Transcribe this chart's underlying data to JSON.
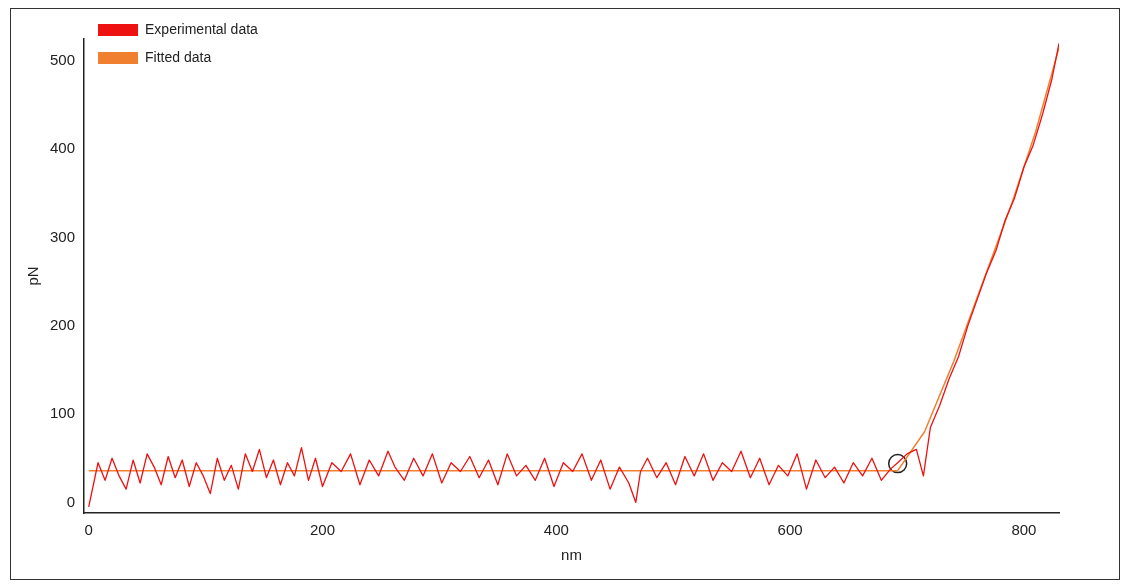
{
  "chart_data": {
    "type": "line",
    "xlabel": "nm",
    "ylabel": "pN",
    "xlim": [
      -4,
      830
    ],
    "ylim": [
      -12,
      525
    ],
    "xticks": [
      0,
      200,
      400,
      600,
      800
    ],
    "yticks": [
      0,
      100,
      200,
      300,
      400,
      500
    ],
    "grid": false,
    "legend": "top left",
    "marker": "none",
    "line_style": "solid",
    "series": [
      {
        "name": "Experimental data",
        "color": "#ee1111",
        "x": [
          0,
          4,
          8,
          14,
          20,
          26,
          32,
          38,
          44,
          50,
          56,
          62,
          68,
          74,
          80,
          86,
          92,
          98,
          104,
          110,
          116,
          122,
          128,
          134,
          140,
          146,
          152,
          158,
          164,
          170,
          176,
          182,
          188,
          194,
          200,
          208,
          216,
          224,
          232,
          240,
          248,
          256,
          262,
          270,
          278,
          286,
          294,
          302,
          310,
          318,
          326,
          334,
          342,
          350,
          358,
          366,
          374,
          382,
          390,
          398,
          406,
          414,
          422,
          430,
          438,
          446,
          454,
          462,
          468,
          472,
          478,
          486,
          494,
          502,
          510,
          518,
          526,
          534,
          542,
          550,
          558,
          566,
          574,
          582,
          590,
          598,
          606,
          614,
          622,
          630,
          638,
          646,
          654,
          662,
          670,
          678,
          686,
          692,
          700,
          708,
          714,
          720,
          728,
          736,
          744,
          752,
          760,
          768,
          776,
          784,
          792,
          800,
          808,
          816,
          824,
          830
        ],
        "values": [
          -5,
          20,
          45,
          25,
          50,
          30,
          15,
          48,
          22,
          55,
          40,
          20,
          52,
          28,
          48,
          18,
          45,
          30,
          10,
          50,
          25,
          42,
          15,
          55,
          35,
          60,
          28,
          48,
          20,
          45,
          30,
          62,
          25,
          50,
          18,
          45,
          35,
          55,
          20,
          48,
          30,
          58,
          40,
          25,
          50,
          30,
          55,
          22,
          45,
          35,
          52,
          28,
          48,
          20,
          55,
          30,
          42,
          25,
          50,
          18,
          45,
          35,
          55,
          25,
          48,
          15,
          40,
          22,
          0,
          35,
          50,
          28,
          45,
          20,
          52,
          30,
          55,
          25,
          45,
          35,
          58,
          28,
          50,
          20,
          42,
          30,
          55,
          15,
          48,
          28,
          40,
          22,
          45,
          30,
          50,
          25,
          38,
          45,
          55,
          60,
          30,
          85,
          110,
          140,
          165,
          200,
          230,
          260,
          285,
          320,
          345,
          380,
          405,
          440,
          480,
          520
        ]
      },
      {
        "name": "Fitted data",
        "color": "#f08030",
        "x": [
          0,
          692,
          715,
          740,
          765,
          790,
          810,
          830
        ],
        "values": [
          36,
          36,
          80,
          160,
          250,
          340,
          420,
          515
        ]
      },
      {
        "type": "scatter",
        "marker": "circle",
        "color": "#222222",
        "x": [
          692
        ],
        "values": [
          44
        ]
      }
    ]
  }
}
